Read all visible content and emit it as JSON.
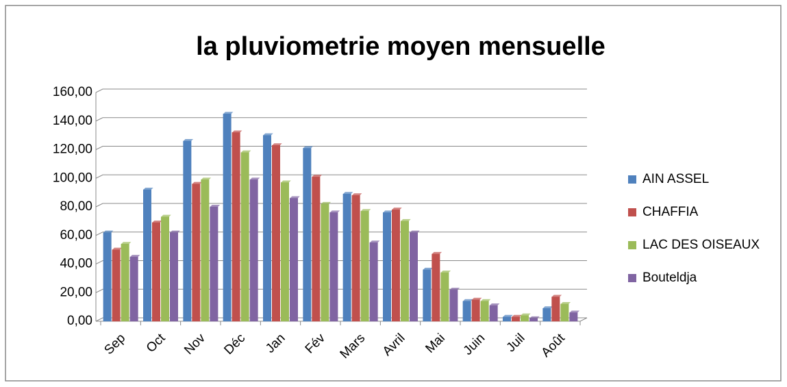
{
  "chart_data": {
    "type": "bar",
    "title": "la pluviometrie moyen mensuelle",
    "categories": [
      "Sep",
      "Oct",
      "Nov",
      "Déc",
      "Jan",
      "Fév",
      "Mars",
      "Avril",
      "Mai",
      "Juin",
      "Juil",
      "Août"
    ],
    "series": [
      {
        "name": "AIN ASSEL",
        "color": "#4f81bd",
        "values": [
          62,
          92,
          126,
          145,
          130,
          121,
          89,
          76,
          36,
          14,
          3,
          9
        ]
      },
      {
        "name": "CHAFFIA",
        "color": "#c0504d",
        "values": [
          50,
          69,
          96,
          132,
          123,
          101,
          88,
          78,
          47,
          15,
          3,
          17
        ]
      },
      {
        "name": "LAC DES  OISEAUX",
        "color": "#9bbb59",
        "values": [
          54,
          73,
          99,
          118,
          97,
          82,
          77,
          70,
          34,
          14,
          4,
          12
        ]
      },
      {
        "name": "Bouteldja",
        "color": "#8064a2",
        "values": [
          45,
          62,
          80,
          99,
          86,
          76,
          55,
          62,
          22,
          11,
          2,
          6
        ]
      }
    ],
    "ylim": [
      0,
      160
    ],
    "yticks": [
      {
        "value": 0,
        "label": "0,00"
      },
      {
        "value": 20,
        "label": "20,00"
      },
      {
        "value": 40,
        "label": "40,00"
      },
      {
        "value": 60,
        "label": "60,00"
      },
      {
        "value": 80,
        "label": "80,00"
      },
      {
        "value": 100,
        "label": "100,00"
      },
      {
        "value": 120,
        "label": "120,00"
      },
      {
        "value": 140,
        "label": "140,00"
      },
      {
        "value": 160,
        "label": "160,00"
      }
    ],
    "grid": true,
    "legend": "right"
  }
}
